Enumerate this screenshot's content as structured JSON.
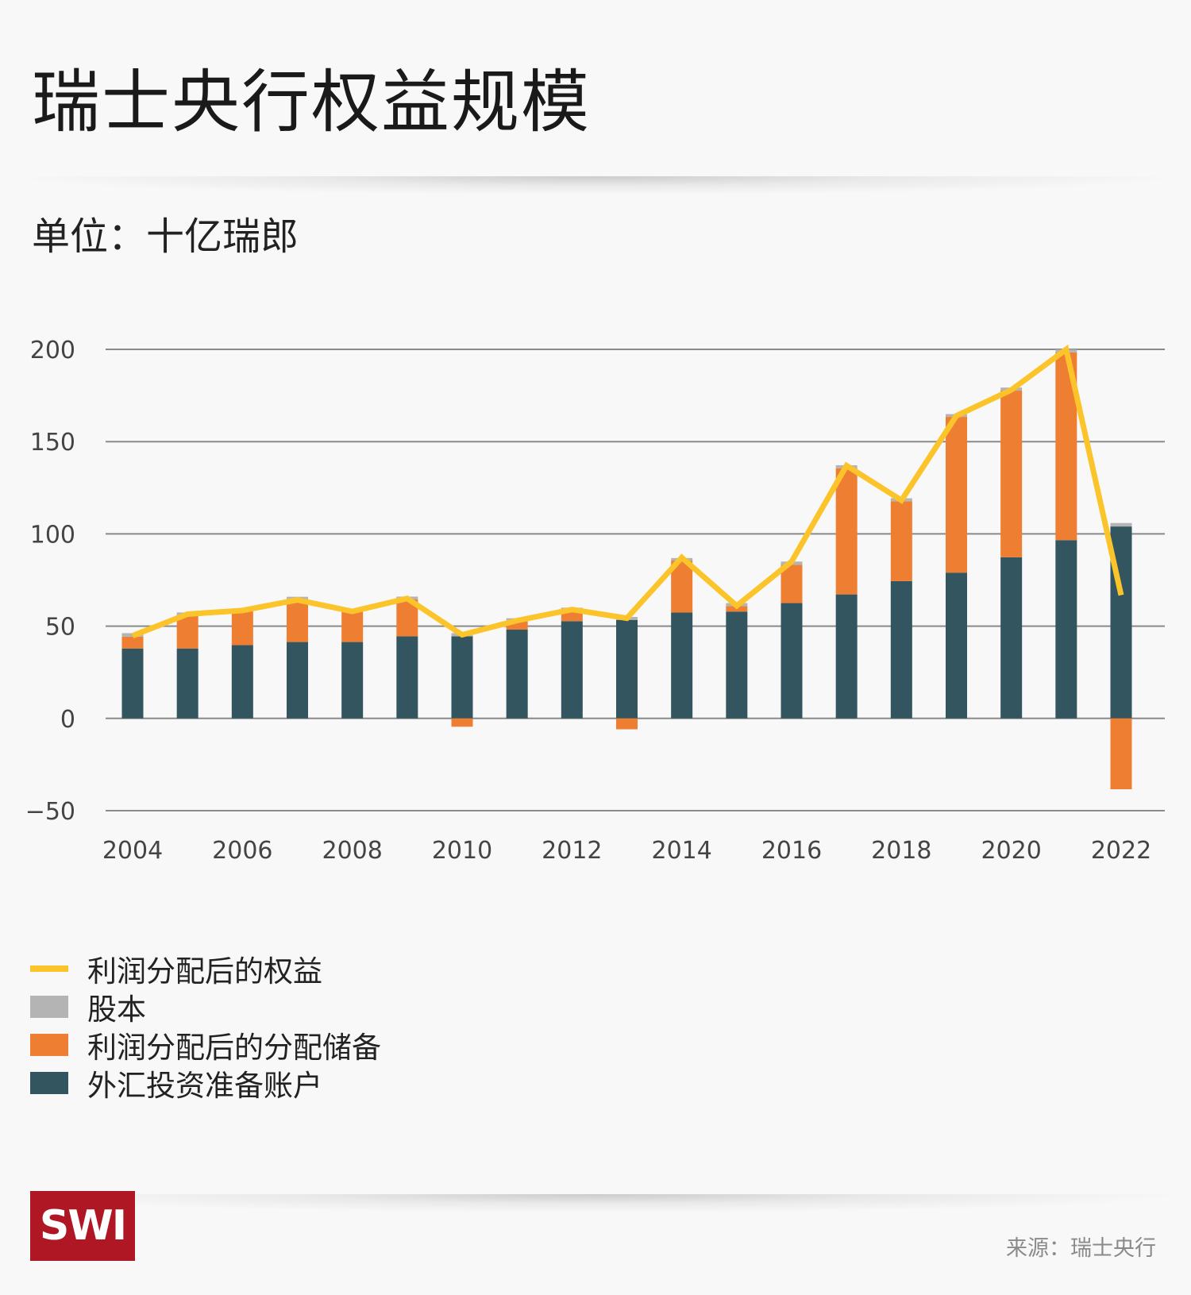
{
  "title": "瑞士央行权益规模",
  "subtitle": "单位：十亿瑞郎",
  "colors": {
    "fx_reserve": "#32555f",
    "distribution_reserve": "#ee7f32",
    "share_capital": "#b4b4b4",
    "equity_line": "#fcc42b",
    "grid": "#8a8a8a",
    "logo_bg": "#b01724"
  },
  "legend": [
    {
      "key": "equity_line",
      "label": "利润分配后的权益",
      "type": "line"
    },
    {
      "key": "share_capital",
      "label": "股本",
      "type": "box"
    },
    {
      "key": "distribution_reserve",
      "label": "利润分配后的分配储备",
      "type": "box"
    },
    {
      "key": "fx_reserve",
      "label": "外汇投资准备账户",
      "type": "box"
    }
  ],
  "footer": {
    "logo_text": "SWI",
    "source": "来源：瑞士央行"
  },
  "chart_data": {
    "type": "bar",
    "stacked": true,
    "title": "瑞士央行权益规模",
    "subtitle": "单位：十亿瑞郎",
    "xlabel": "",
    "ylabel": "",
    "ylim": [
      -50,
      200
    ],
    "yticks": [
      200,
      150,
      100,
      50,
      0,
      -50
    ],
    "ytick_labels": [
      "200",
      "150",
      "100",
      "50",
      "0",
      "−50"
    ],
    "x": [
      2004,
      2005,
      2006,
      2007,
      2008,
      2009,
      2010,
      2011,
      2012,
      2013,
      2014,
      2015,
      2016,
      2017,
      2018,
      2019,
      2020,
      2021,
      2022
    ],
    "xtick_labels": [
      "2004",
      "2006",
      "2008",
      "2010",
      "2012",
      "2014",
      "2016",
      "2018",
      "2020",
      "2022"
    ],
    "grid": true,
    "legend_position": "bottom-left",
    "series": [
      {
        "name": "外汇投资准备账户",
        "key": "fx_reserve",
        "kind": "bar",
        "values": [
          37.9,
          37.9,
          39.7,
          41.4,
          41.4,
          44.5,
          44.5,
          48.1,
          52.7,
          53.4,
          57.4,
          57.9,
          62.5,
          67.2,
          74.4,
          79.0,
          87.3,
          96.6,
          104.0
        ]
      },
      {
        "name": "利润分配后的分配储备",
        "key": "distribution_reserve",
        "kind": "bar",
        "values": [
          6.4,
          18.1,
          18.3,
          22.9,
          16.6,
          20.1,
          -4.5,
          4.9,
          6.8,
          -5.9,
          28.1,
          3.0,
          20.8,
          68.3,
          43.3,
          84.4,
          90.3,
          101.7,
          -38.4
        ]
      },
      {
        "name": "股本",
        "key": "share_capital",
        "kind": "bar",
        "values": [
          1.9,
          1.4,
          0.5,
          1.6,
          0.5,
          1.4,
          1.7,
          1.3,
          0.5,
          1.6,
          1.4,
          1.6,
          1.7,
          1.7,
          1.6,
          1.5,
          1.7,
          1.6,
          1.9
        ]
      },
      {
        "name": "利润分配后的权益",
        "key": "equity_line",
        "kind": "line",
        "values": [
          44.8,
          56.5,
          58.5,
          64.2,
          58.0,
          65.0,
          45.3,
          53.0,
          59.0,
          54.3,
          87.2,
          61.0,
          85.0,
          137.0,
          118.2,
          164.0,
          178.0,
          200.0,
          66.8
        ]
      }
    ]
  }
}
